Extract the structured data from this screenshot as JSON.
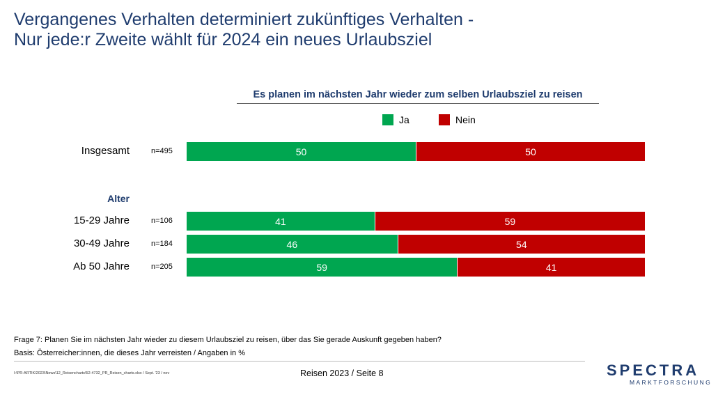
{
  "title": {
    "line1": "Vergangenes Verhalten determiniert zukünftiges Verhalten -",
    "line2": "Nur jede:r Zweite wählt für 2024 ein neues Urlaubsziel"
  },
  "chart_data": {
    "type": "bar",
    "stacked": true,
    "orientation": "horizontal",
    "title": "Es planen im nächsten Jahr wieder zum selben Urlaubsziel zu reisen",
    "group_label": "Alter",
    "categories": [
      "Insgesamt",
      "15-29 Jahre",
      "30-49 Jahre",
      "Ab 50 Jahre"
    ],
    "sample_sizes": [
      "n=495",
      "n=106",
      "n=184",
      "n=205"
    ],
    "series": [
      {
        "name": "Ja",
        "color": "#00a650",
        "values": [
          50,
          41,
          46,
          59
        ]
      },
      {
        "name": "Nein",
        "color": "#c00000",
        "values": [
          50,
          59,
          54,
          41
        ]
      }
    ],
    "xlim": [
      0,
      100
    ],
    "legend_position": "top-center",
    "grid": false
  },
  "footnotes": {
    "question": "Frage 7: Planen Sie im nächsten Jahr wieder zu diesem Urlaubsziel zu reisen, über das Sie gerade Auskunft gegeben haben?",
    "basis": "Basis: Österreicher:innen, die dieses Jahr verreisten / Angaben in %"
  },
  "footer": {
    "path": "I:\\PR-ARTIK\\2023\\News\\12_Reisencharts\\52-4732_PR_Reisen_charts.xlsx / Sept. '23 / nev",
    "page_info": "Reisen 2023  /  Seite 8",
    "logo_main": "SPECTRA",
    "logo_sub": "MARKTFORSCHUNG"
  }
}
